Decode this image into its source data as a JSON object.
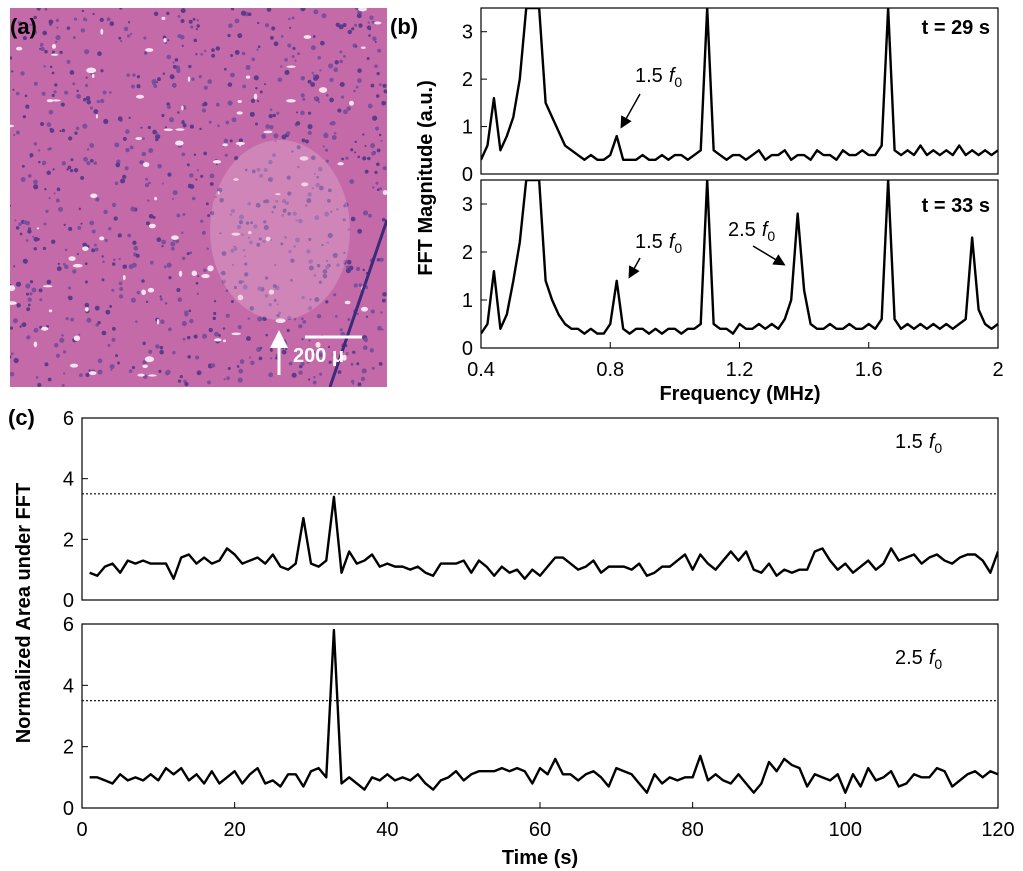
{
  "panel_labels": [
    "(a)",
    "(b)",
    "(c)"
  ],
  "image": {
    "scale_bar": "200 μ"
  },
  "chart_data": [
    {
      "type": "line",
      "label": "t = 29 s",
      "ylabel": "FFT Magnitude (a.u.)",
      "annotations": [
        {
          "text": "1.5",
          "var": "f",
          "sub": "0"
        }
      ],
      "xlim": [
        0.4,
        2
      ],
      "ylim": [
        0,
        3.5
      ],
      "yticks": [
        0,
        1,
        2,
        3
      ],
      "color": "#000000",
      "x": [
        0.4,
        0.42,
        0.44,
        0.46,
        0.48,
        0.5,
        0.52,
        0.54,
        0.56,
        0.58,
        0.6,
        0.62,
        0.64,
        0.66,
        0.68,
        0.7,
        0.72,
        0.74,
        0.76,
        0.78,
        0.8,
        0.82,
        0.84,
        0.86,
        0.88,
        0.9,
        0.92,
        0.94,
        0.96,
        0.98,
        1,
        1.02,
        1.04,
        1.06,
        1.08,
        1.1,
        1.12,
        1.14,
        1.16,
        1.18,
        1.2,
        1.22,
        1.24,
        1.26,
        1.28,
        1.3,
        1.32,
        1.34,
        1.36,
        1.38,
        1.4,
        1.42,
        1.44,
        1.46,
        1.48,
        1.5,
        1.52,
        1.54,
        1.56,
        1.58,
        1.6,
        1.62,
        1.64,
        1.66,
        1.68,
        1.7,
        1.72,
        1.74,
        1.76,
        1.78,
        1.8,
        1.82,
        1.84,
        1.86,
        1.88,
        1.9,
        1.92,
        1.94,
        1.96,
        1.98,
        2
      ],
      "values": [
        0.3,
        0.6,
        1.6,
        0.5,
        0.8,
        1.2,
        2.0,
        3.5,
        3.5,
        3.5,
        1.5,
        1.2,
        0.9,
        0.6,
        0.5,
        0.4,
        0.3,
        0.4,
        0.3,
        0.3,
        0.4,
        0.8,
        0.3,
        0.3,
        0.3,
        0.4,
        0.3,
        0.3,
        0.4,
        0.3,
        0.4,
        0.4,
        0.3,
        0.4,
        0.5,
        3.5,
        0.5,
        0.4,
        0.3,
        0.4,
        0.4,
        0.3,
        0.4,
        0.5,
        0.3,
        0.4,
        0.4,
        0.5,
        0.3,
        0.4,
        0.4,
        0.3,
        0.5,
        0.4,
        0.4,
        0.3,
        0.5,
        0.4,
        0.4,
        0.5,
        0.4,
        0.4,
        0.6,
        3.5,
        0.5,
        0.4,
        0.5,
        0.4,
        0.6,
        0.4,
        0.5,
        0.4,
        0.5,
        0.4,
        0.6,
        0.4,
        0.5,
        0.4,
        0.5,
        0.4,
        0.5
      ]
    },
    {
      "type": "line",
      "label": "t = 33 s",
      "xlabel": "Frequency (MHz)",
      "annotations": [
        {
          "text": "1.5",
          "var": "f",
          "sub": "0"
        },
        {
          "text": "2.5",
          "var": "f",
          "sub": "0"
        }
      ],
      "xlim": [
        0.4,
        2
      ],
      "ylim": [
        0,
        3.5
      ],
      "xticks": [
        0.4,
        0.8,
        1.2,
        1.6,
        2
      ],
      "yticks": [
        0,
        1,
        2,
        3
      ],
      "color": "#000000",
      "x": [
        0.4,
        0.42,
        0.44,
        0.46,
        0.48,
        0.5,
        0.52,
        0.54,
        0.56,
        0.58,
        0.6,
        0.62,
        0.64,
        0.66,
        0.68,
        0.7,
        0.72,
        0.74,
        0.76,
        0.78,
        0.8,
        0.82,
        0.84,
        0.86,
        0.88,
        0.9,
        0.92,
        0.94,
        0.96,
        0.98,
        1,
        1.02,
        1.04,
        1.06,
        1.08,
        1.1,
        1.12,
        1.14,
        1.16,
        1.18,
        1.2,
        1.22,
        1.24,
        1.26,
        1.28,
        1.3,
        1.32,
        1.34,
        1.36,
        1.38,
        1.4,
        1.42,
        1.44,
        1.46,
        1.48,
        1.5,
        1.52,
        1.54,
        1.56,
        1.58,
        1.6,
        1.62,
        1.64,
        1.66,
        1.68,
        1.7,
        1.72,
        1.74,
        1.76,
        1.78,
        1.8,
        1.82,
        1.84,
        1.86,
        1.88,
        1.9,
        1.92,
        1.94,
        1.96,
        1.98,
        2
      ],
      "values": [
        0.3,
        0.5,
        1.6,
        0.4,
        0.7,
        1.4,
        2.2,
        3.5,
        3.5,
        3.5,
        1.4,
        1.0,
        0.7,
        0.5,
        0.4,
        0.4,
        0.3,
        0.4,
        0.3,
        0.3,
        0.5,
        1.4,
        0.4,
        0.3,
        0.4,
        0.4,
        0.3,
        0.4,
        0.3,
        0.4,
        0.4,
        0.3,
        0.4,
        0.4,
        0.5,
        3.5,
        0.5,
        0.4,
        0.4,
        0.3,
        0.5,
        0.4,
        0.4,
        0.5,
        0.4,
        0.5,
        0.4,
        0.6,
        1.0,
        2.8,
        1.2,
        0.5,
        0.4,
        0.4,
        0.5,
        0.4,
        0.4,
        0.5,
        0.4,
        0.4,
        0.5,
        0.4,
        0.6,
        3.5,
        0.6,
        0.4,
        0.5,
        0.4,
        0.5,
        0.4,
        0.5,
        0.4,
        0.5,
        0.4,
        0.5,
        0.6,
        2.3,
        0.8,
        0.5,
        0.4,
        0.5
      ]
    },
    {
      "type": "line",
      "ylabel": "Normalized Area under FFT",
      "annotations": [
        {
          "text": "1.5",
          "var": "f",
          "sub": "0"
        }
      ],
      "xlim": [
        0,
        120
      ],
      "ylim": [
        0,
        6
      ],
      "yticks": [
        0,
        2,
        4,
        6
      ],
      "threshold": 3.5,
      "color": "#000000",
      "x": [
        1,
        2,
        3,
        4,
        5,
        6,
        7,
        8,
        9,
        10,
        11,
        12,
        13,
        14,
        15,
        16,
        17,
        18,
        19,
        20,
        21,
        22,
        23,
        24,
        25,
        26,
        27,
        28,
        29,
        30,
        31,
        32,
        33,
        34,
        35,
        36,
        37,
        38,
        39,
        40,
        41,
        42,
        43,
        44,
        45,
        46,
        47,
        48,
        49,
        50,
        51,
        52,
        53,
        54,
        55,
        56,
        57,
        58,
        59,
        60,
        61,
        62,
        63,
        64,
        65,
        66,
        67,
        68,
        69,
        70,
        71,
        72,
        73,
        74,
        75,
        76,
        77,
        78,
        79,
        80,
        81,
        82,
        83,
        84,
        85,
        86,
        87,
        88,
        89,
        90,
        91,
        92,
        93,
        94,
        95,
        96,
        97,
        98,
        99,
        100,
        101,
        102,
        103,
        104,
        105,
        106,
        107,
        108,
        109,
        110,
        111,
        112,
        113,
        114,
        115,
        116,
        117,
        118,
        119,
        120
      ],
      "values": [
        0.9,
        0.8,
        1.1,
        1.2,
        0.9,
        1.3,
        1.2,
        1.3,
        1.2,
        1.2,
        1.2,
        0.7,
        1.4,
        1.5,
        1.2,
        1.4,
        1.2,
        1.3,
        1.7,
        1.5,
        1.2,
        1.3,
        1.4,
        1.2,
        1.5,
        1.1,
        1.0,
        1.2,
        2.7,
        1.2,
        1.1,
        1.3,
        3.4,
        0.9,
        1.6,
        1.2,
        1.3,
        1.5,
        1.1,
        1.2,
        1.1,
        1.1,
        1.0,
        1.1,
        0.9,
        0.8,
        1.2,
        1.2,
        1.2,
        1.3,
        0.9,
        1.3,
        1.1,
        0.8,
        1.1,
        0.9,
        1.0,
        0.7,
        1.0,
        0.8,
        1.1,
        1.4,
        1.4,
        1.2,
        1.0,
        1.1,
        1.3,
        0.9,
        1.1,
        1.1,
        1.1,
        1.0,
        1.2,
        0.8,
        0.9,
        1.1,
        1.1,
        1.3,
        1.5,
        1.0,
        1.5,
        1.2,
        1.0,
        1.3,
        1.6,
        1.3,
        1.6,
        1.0,
        0.9,
        1.2,
        0.8,
        1.0,
        0.9,
        1.0,
        1.0,
        1.6,
        1.7,
        1.3,
        1.0,
        1.2,
        0.9,
        1.1,
        1.3,
        1.0,
        1.2,
        1.7,
        1.3,
        1.4,
        1.5,
        1.2,
        1.4,
        1.5,
        1.3,
        1.2,
        1.4,
        1.5,
        1.5,
        1.3,
        0.9,
        1.6
      ]
    },
    {
      "type": "line",
      "xlabel": "Time (s)",
      "annotations": [
        {
          "text": "2.5",
          "var": "f",
          "sub": "0"
        }
      ],
      "xlim": [
        0,
        120
      ],
      "ylim": [
        0,
        6
      ],
      "xticks": [
        0,
        20,
        40,
        60,
        80,
        100,
        120
      ],
      "yticks": [
        0,
        2,
        4,
        6
      ],
      "threshold": 3.5,
      "color": "#000000",
      "x": [
        1,
        2,
        3,
        4,
        5,
        6,
        7,
        8,
        9,
        10,
        11,
        12,
        13,
        14,
        15,
        16,
        17,
        18,
        19,
        20,
        21,
        22,
        23,
        24,
        25,
        26,
        27,
        28,
        29,
        30,
        31,
        32,
        33,
        34,
        35,
        36,
        37,
        38,
        39,
        40,
        41,
        42,
        43,
        44,
        45,
        46,
        47,
        48,
        49,
        50,
        51,
        52,
        53,
        54,
        55,
        56,
        57,
        58,
        59,
        60,
        61,
        62,
        63,
        64,
        65,
        66,
        67,
        68,
        69,
        70,
        71,
        72,
        73,
        74,
        75,
        76,
        77,
        78,
        79,
        80,
        81,
        82,
        83,
        84,
        85,
        86,
        87,
        88,
        89,
        90,
        91,
        92,
        93,
        94,
        95,
        96,
        97,
        98,
        99,
        100,
        101,
        102,
        103,
        104,
        105,
        106,
        107,
        108,
        109,
        110,
        111,
        112,
        113,
        114,
        115,
        116,
        117,
        118,
        119,
        120
      ],
      "values": [
        1.0,
        1.0,
        0.9,
        0.8,
        1.1,
        0.9,
        1.0,
        0.9,
        1.1,
        0.9,
        1.3,
        1.1,
        1.3,
        0.9,
        1.1,
        0.8,
        1.2,
        0.8,
        1.0,
        1.2,
        0.8,
        1.1,
        1.3,
        0.8,
        0.9,
        0.7,
        1.1,
        1.1,
        0.7,
        1.2,
        1.3,
        1.0,
        5.8,
        0.8,
        1.0,
        0.8,
        0.6,
        1.0,
        0.9,
        1.1,
        0.9,
        1.0,
        0.9,
        1.1,
        0.8,
        0.6,
        0.9,
        1.0,
        1.2,
        0.9,
        1.1,
        1.2,
        1.2,
        1.2,
        1.3,
        1.2,
        1.3,
        1.2,
        0.8,
        1.3,
        1.1,
        1.6,
        1.1,
        1.1,
        0.9,
        1.1,
        1.2,
        1.0,
        0.7,
        1.3,
        1.2,
        1.1,
        0.8,
        0.5,
        1.1,
        0.8,
        1.0,
        0.9,
        1.0,
        1.0,
        1.7,
        0.9,
        1.1,
        0.9,
        0.8,
        1.1,
        0.8,
        0.5,
        0.8,
        1.5,
        1.2,
        1.6,
        1.4,
        1.3,
        0.7,
        1.1,
        1.0,
        0.9,
        1.1,
        0.5,
        1.1,
        0.7,
        1.3,
        0.9,
        1.0,
        1.2,
        0.7,
        0.8,
        1.1,
        1.0,
        1.0,
        1.3,
        1.2,
        0.7,
        0.9,
        1.1,
        1.2,
        1.0,
        1.2,
        1.1
      ]
    }
  ]
}
